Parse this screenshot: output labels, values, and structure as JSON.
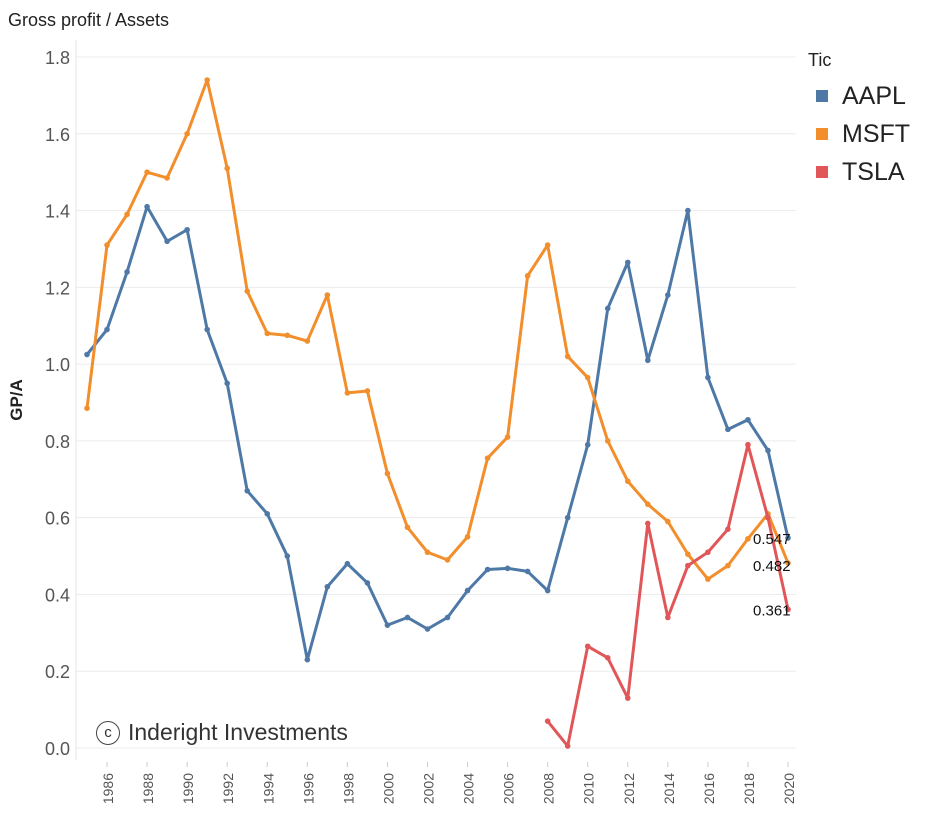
{
  "page_title": "Gross profit / Assets",
  "chart_data": {
    "type": "line",
    "title": "Gross profit / Assets",
    "xlabel": "",
    "ylabel": "GP/A",
    "ylim": [
      0.0,
      1.8
    ],
    "yticks": [
      "0.0",
      "0.2",
      "0.4",
      "0.6",
      "0.8",
      "1.0",
      "1.2",
      "1.4",
      "1.6",
      "1.8"
    ],
    "xticks": [
      "1986",
      "1988",
      "1990",
      "1992",
      "1994",
      "1996",
      "1998",
      "2000",
      "2002",
      "2004",
      "2006",
      "2008",
      "2010",
      "2012",
      "2014",
      "2016",
      "2018",
      "2020"
    ],
    "xlim": [
      1985,
      2020
    ],
    "legend_title": "Tic",
    "series": [
      {
        "name": "AAPL",
        "color": "#4e79a7",
        "x": [
          1985,
          1986,
          1987,
          1988,
          1989,
          1990,
          1991,
          1992,
          1993,
          1994,
          1995,
          1996,
          1997,
          1998,
          1999,
          2000,
          2001,
          2002,
          2003,
          2004,
          2005,
          2006,
          2007,
          2008,
          2009,
          2010,
          2011,
          2012,
          2013,
          2014,
          2015,
          2016,
          2017,
          2018,
          2019,
          2020
        ],
        "values": [
          1.025,
          1.09,
          1.24,
          1.41,
          1.32,
          1.35,
          1.09,
          0.95,
          0.67,
          0.61,
          0.5,
          0.23,
          0.42,
          0.48,
          0.43,
          0.32,
          0.34,
          0.31,
          0.34,
          0.41,
          0.465,
          0.468,
          0.46,
          0.41,
          0.6,
          0.79,
          1.145,
          1.265,
          1.01,
          1.18,
          1.4,
          0.965,
          0.83,
          0.855,
          0.775,
          0.547
        ],
        "end_label": "0.547"
      },
      {
        "name": "MSFT",
        "color": "#f28e2b",
        "x": [
          1985,
          1986,
          1987,
          1988,
          1989,
          1990,
          1991,
          1992,
          1993,
          1994,
          1995,
          1996,
          1997,
          1998,
          1999,
          2000,
          2001,
          2002,
          2003,
          2004,
          2005,
          2006,
          2007,
          2008,
          2009,
          2010,
          2011,
          2012,
          2013,
          2014,
          2015,
          2016,
          2017,
          2018,
          2019,
          2020
        ],
        "values": [
          0.885,
          1.31,
          1.39,
          1.5,
          1.485,
          1.6,
          1.74,
          1.51,
          1.19,
          1.08,
          1.075,
          1.06,
          1.18,
          0.925,
          0.93,
          0.715,
          0.575,
          0.51,
          0.49,
          0.55,
          0.755,
          0.81,
          1.23,
          1.31,
          1.02,
          0.965,
          0.8,
          0.695,
          0.635,
          0.59,
          0.505,
          0.44,
          0.475,
          0.545,
          0.61,
          0.482
        ],
        "end_label": "0.482"
      },
      {
        "name": "TSLA",
        "color": "#e15759",
        "x": [
          2008,
          2009,
          2010,
          2011,
          2012,
          2013,
          2014,
          2015,
          2016,
          2017,
          2018,
          2019,
          2020
        ],
        "values": [
          0.07,
          0.005,
          0.265,
          0.235,
          0.13,
          0.585,
          0.34,
          0.475,
          0.51,
          0.57,
          0.79,
          0.6,
          0.361
        ],
        "end_label": "0.361"
      }
    ]
  },
  "watermark": {
    "symbol": "c",
    "text": "Inderight Investments"
  }
}
